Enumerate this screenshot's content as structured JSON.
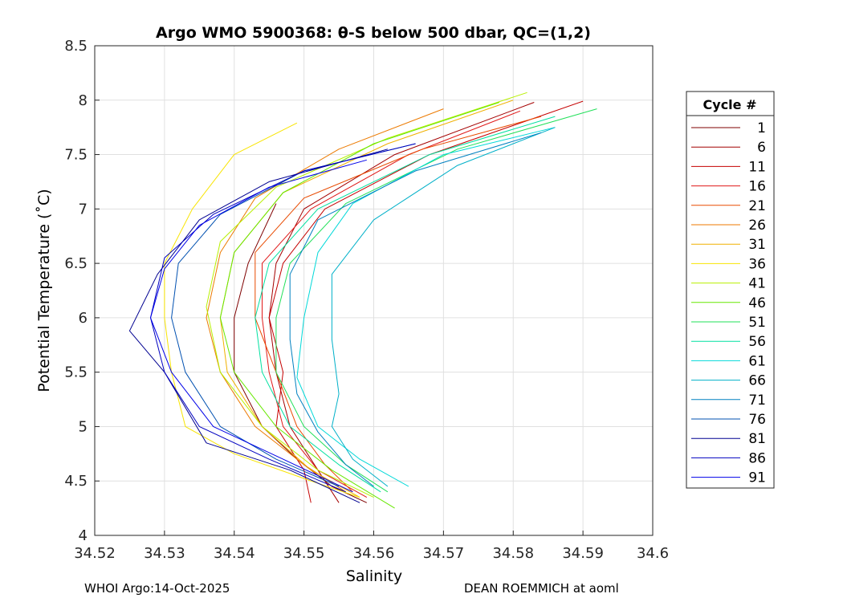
{
  "chart_data": {
    "type": "line",
    "title": "Argo WMO 5900368: θ-S below 500 dbar,  QC=(1,2)",
    "xlabel": "Salinity",
    "ylabel": "Potential Temperature (˚C)",
    "xlim": [
      34.52,
      34.6
    ],
    "ylim": [
      4,
      8.5
    ],
    "xticks": [
      34.52,
      34.53,
      34.54,
      34.55,
      34.56,
      34.57,
      34.58,
      34.59,
      34.6
    ],
    "yticks": [
      4,
      4.5,
      5,
      5.5,
      6,
      6.5,
      7,
      7.5,
      8,
      8.5
    ],
    "xtick_labels": [
      "34.52",
      "34.53",
      "34.54",
      "34.55",
      "34.56",
      "34.57",
      "34.58",
      "34.59",
      "34.6"
    ],
    "ytick_labels": [
      "4",
      "4.5",
      "5",
      "5.5",
      "6",
      "6.5",
      "7",
      "7.5",
      "8",
      "8.5"
    ],
    "grid": true,
    "legend": {
      "title": "Cycle #",
      "placement": "outside-right",
      "entries": [
        {
          "label": "1",
          "color": "#7f0000"
        },
        {
          "label": "6",
          "color": "#a40000"
        },
        {
          "label": "11",
          "color": "#c40000"
        },
        {
          "label": "16",
          "color": "#e01818"
        },
        {
          "label": "21",
          "color": "#e84a00"
        },
        {
          "label": "26",
          "color": "#ec7a00"
        },
        {
          "label": "31",
          "color": "#f0b000"
        },
        {
          "label": "36",
          "color": "#f8e400"
        },
        {
          "label": "41",
          "color": "#b8f000"
        },
        {
          "label": "46",
          "color": "#66e800"
        },
        {
          "label": "51",
          "color": "#22e05a"
        },
        {
          "label": "56",
          "color": "#00e0a0"
        },
        {
          "label": "61",
          "color": "#00d8d8"
        },
        {
          "label": "66",
          "color": "#00b0c8"
        },
        {
          "label": "71",
          "color": "#0080c0"
        },
        {
          "label": "76",
          "color": "#0050b0"
        },
        {
          "label": "81",
          "color": "#000090"
        },
        {
          "label": "86",
          "color": "#0000c0"
        },
        {
          "label": "91",
          "color": "#0000e8"
        }
      ]
    },
    "series": [
      {
        "name": "1",
        "points": [
          [
            34.546,
            7.05
          ],
          [
            34.542,
            6.5
          ],
          [
            34.54,
            6.0
          ],
          [
            34.54,
            5.5
          ],
          [
            34.544,
            5.0
          ],
          [
            34.549,
            4.7
          ],
          [
            34.554,
            4.45
          ],
          [
            34.559,
            4.3
          ]
        ]
      },
      {
        "name": "6",
        "points": [
          [
            34.583,
            7.98
          ],
          [
            34.563,
            7.5
          ],
          [
            34.55,
            7.0
          ],
          [
            34.546,
            6.5
          ],
          [
            34.545,
            6.0
          ],
          [
            34.546,
            5.5
          ],
          [
            34.548,
            5.0
          ],
          [
            34.552,
            4.6
          ],
          [
            34.555,
            4.3
          ]
        ]
      },
      {
        "name": "11",
        "points": [
          [
            34.59,
            7.99
          ],
          [
            34.568,
            7.5
          ],
          [
            34.553,
            7.0
          ],
          [
            34.547,
            6.5
          ],
          [
            34.545,
            6.0
          ],
          [
            34.547,
            5.5
          ],
          [
            34.546,
            5.0
          ],
          [
            34.55,
            4.6
          ],
          [
            34.551,
            4.3
          ]
        ]
      },
      {
        "name": "16",
        "points": [
          [
            34.581,
            7.9
          ],
          [
            34.565,
            7.5
          ],
          [
            34.551,
            7.0
          ],
          [
            34.544,
            6.5
          ],
          [
            34.544,
            6.0
          ],
          [
            34.545,
            5.5
          ],
          [
            34.547,
            5.0
          ],
          [
            34.552,
            4.6
          ],
          [
            34.559,
            4.35
          ]
        ]
      },
      {
        "name": "21",
        "points": [
          [
            34.584,
            7.85
          ],
          [
            34.567,
            7.55
          ],
          [
            34.55,
            7.1
          ],
          [
            34.543,
            6.6
          ],
          [
            34.543,
            6.0
          ],
          [
            34.546,
            5.5
          ],
          [
            34.549,
            5.0
          ],
          [
            34.553,
            4.65
          ],
          [
            34.557,
            4.4
          ]
        ]
      },
      {
        "name": "26",
        "points": [
          [
            34.57,
            7.92
          ],
          [
            34.555,
            7.55
          ],
          [
            34.543,
            7.1
          ],
          [
            34.538,
            6.6
          ],
          [
            34.536,
            6.0
          ],
          [
            34.538,
            5.5
          ],
          [
            34.543,
            5.0
          ],
          [
            34.55,
            4.65
          ],
          [
            34.556,
            4.4
          ]
        ]
      },
      {
        "name": "31",
        "points": [
          [
            34.58,
            8.0
          ],
          [
            34.562,
            7.6
          ],
          [
            34.547,
            7.15
          ],
          [
            34.54,
            6.6
          ],
          [
            34.538,
            6.0
          ],
          [
            34.539,
            5.5
          ],
          [
            34.544,
            5.0
          ],
          [
            34.551,
            4.6
          ],
          [
            34.558,
            4.35
          ]
        ]
      },
      {
        "name": "36",
        "points": [
          [
            34.549,
            7.79
          ],
          [
            34.54,
            7.5
          ],
          [
            34.534,
            7.0
          ],
          [
            34.53,
            6.5
          ],
          [
            34.53,
            6.0
          ],
          [
            34.531,
            5.5
          ],
          [
            34.533,
            5.0
          ],
          [
            34.54,
            4.75
          ],
          [
            34.551,
            4.5
          ],
          [
            34.558,
            4.35
          ]
        ]
      },
      {
        "name": "41",
        "points": [
          [
            34.582,
            8.07
          ],
          [
            34.562,
            7.65
          ],
          [
            34.546,
            7.2
          ],
          [
            34.538,
            6.7
          ],
          [
            34.536,
            6.1
          ],
          [
            34.538,
            5.5
          ],
          [
            34.544,
            5.0
          ],
          [
            34.552,
            4.6
          ],
          [
            34.56,
            4.35
          ]
        ]
      },
      {
        "name": "46",
        "points": [
          [
            34.578,
            7.98
          ],
          [
            34.56,
            7.6
          ],
          [
            34.547,
            7.15
          ],
          [
            34.54,
            6.6
          ],
          [
            34.538,
            6.0
          ],
          [
            34.54,
            5.5
          ],
          [
            34.546,
            5.0
          ],
          [
            34.554,
            4.6
          ],
          [
            34.563,
            4.25
          ]
        ]
      },
      {
        "name": "51",
        "points": [
          [
            34.592,
            7.92
          ],
          [
            34.572,
            7.55
          ],
          [
            34.556,
            7.05
          ],
          [
            34.548,
            6.5
          ],
          [
            34.546,
            6.0
          ],
          [
            34.546,
            5.5
          ],
          [
            34.55,
            5.0
          ],
          [
            34.556,
            4.65
          ],
          [
            34.562,
            4.4
          ]
        ]
      },
      {
        "name": "56",
        "points": [
          [
            34.586,
            7.85
          ],
          [
            34.568,
            7.5
          ],
          [
            34.552,
            7.0
          ],
          [
            34.545,
            6.5
          ],
          [
            34.543,
            6.0
          ],
          [
            34.544,
            5.5
          ],
          [
            34.548,
            5.0
          ],
          [
            34.555,
            4.65
          ],
          [
            34.561,
            4.4
          ]
        ]
      },
      {
        "name": "61",
        "points": [
          [
            34.586,
            7.75
          ],
          [
            34.57,
            7.5
          ],
          [
            34.557,
            7.05
          ],
          [
            34.552,
            6.6
          ],
          [
            34.55,
            6.0
          ],
          [
            34.549,
            5.45
          ],
          [
            34.552,
            5.0
          ],
          [
            34.558,
            4.7
          ],
          [
            34.565,
            4.45
          ]
        ]
      },
      {
        "name": "66",
        "points": [
          [
            34.586,
            7.75
          ],
          [
            34.572,
            7.4
          ],
          [
            34.56,
            6.9
          ],
          [
            34.554,
            6.4
          ],
          [
            34.554,
            5.8
          ],
          [
            34.555,
            5.3
          ],
          [
            34.554,
            5.0
          ],
          [
            34.557,
            4.7
          ],
          [
            34.562,
            4.45
          ]
        ]
      },
      {
        "name": "71",
        "points": [
          [
            34.584,
            7.7
          ],
          [
            34.566,
            7.35
          ],
          [
            34.552,
            6.9
          ],
          [
            34.548,
            6.4
          ],
          [
            34.548,
            5.8
          ],
          [
            34.549,
            5.3
          ],
          [
            34.552,
            4.95
          ],
          [
            34.556,
            4.65
          ],
          [
            34.56,
            4.45
          ]
        ]
      },
      {
        "name": "76",
        "points": [
          [
            34.566,
            7.6
          ],
          [
            34.55,
            7.35
          ],
          [
            34.538,
            6.95
          ],
          [
            34.532,
            6.5
          ],
          [
            34.531,
            6.0
          ],
          [
            34.533,
            5.5
          ],
          [
            34.538,
            5.0
          ],
          [
            34.546,
            4.7
          ],
          [
            34.555,
            4.45
          ]
        ]
      },
      {
        "name": "81",
        "points": [
          [
            34.562,
            7.55
          ],
          [
            34.545,
            7.25
          ],
          [
            34.535,
            6.9
          ],
          [
            34.529,
            6.4
          ],
          [
            34.525,
            5.88
          ],
          [
            34.53,
            5.5
          ],
          [
            34.536,
            4.85
          ],
          [
            34.548,
            4.6
          ],
          [
            34.558,
            4.3
          ]
        ]
      },
      {
        "name": "86",
        "points": [
          [
            34.566,
            7.6
          ],
          [
            34.55,
            7.35
          ],
          [
            34.537,
            6.95
          ],
          [
            34.53,
            6.55
          ],
          [
            34.528,
            6.0
          ],
          [
            34.53,
            5.5
          ],
          [
            34.535,
            5.0
          ],
          [
            34.545,
            4.7
          ],
          [
            34.556,
            4.4
          ]
        ]
      },
      {
        "name": "91",
        "points": [
          [
            34.559,
            7.45
          ],
          [
            34.545,
            7.2
          ],
          [
            34.535,
            6.85
          ],
          [
            34.53,
            6.45
          ],
          [
            34.528,
            6.0
          ],
          [
            34.531,
            5.5
          ],
          [
            34.537,
            5.0
          ],
          [
            34.547,
            4.7
          ],
          [
            34.557,
            4.4
          ]
        ]
      }
    ]
  },
  "footer": {
    "left": "WHOI Argo:14-Oct-2025",
    "right": "DEAN ROEMMICH at aoml"
  }
}
